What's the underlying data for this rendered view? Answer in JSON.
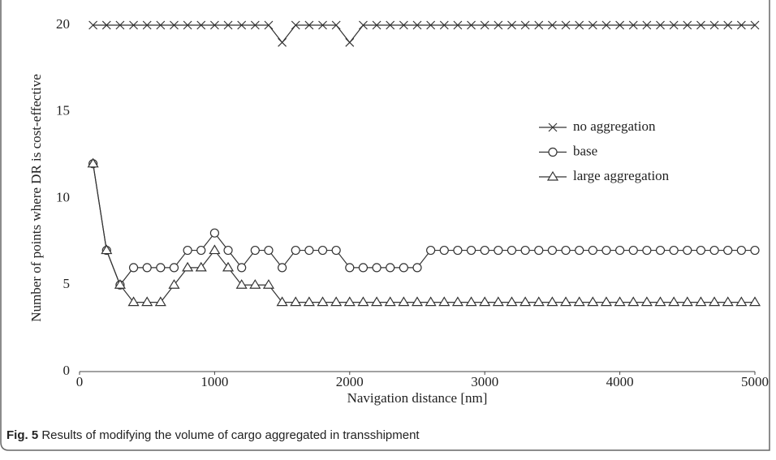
{
  "chart_data": {
    "type": "line",
    "xlabel": "Navigation distance [nm]",
    "ylabel": "Number of points where DR is cost-effective",
    "x": [
      100,
      200,
      300,
      400,
      500,
      600,
      700,
      800,
      900,
      1000,
      1100,
      1200,
      1300,
      1400,
      1500,
      1600,
      1700,
      1800,
      1900,
      2000,
      2100,
      2200,
      2300,
      2400,
      2500,
      2600,
      2700,
      2800,
      2900,
      3000,
      3100,
      3200,
      3300,
      3400,
      3500,
      3600,
      3700,
      3800,
      3900,
      4000,
      4100,
      4200,
      4300,
      4400,
      4500,
      4600,
      4700,
      4800,
      4900,
      5000
    ],
    "series": [
      {
        "name": "no aggregation",
        "color": "#333333",
        "marker": "x",
        "values": [
          20,
          20,
          20,
          20,
          20,
          20,
          20,
          20,
          20,
          20,
          20,
          20,
          20,
          20,
          19,
          20,
          20,
          20,
          20,
          19,
          20,
          20,
          20,
          20,
          20,
          20,
          20,
          20,
          20,
          20,
          20,
          20,
          20,
          20,
          20,
          20,
          20,
          20,
          20,
          20,
          20,
          20,
          20,
          20,
          20,
          20,
          20,
          20,
          20,
          20
        ]
      },
      {
        "name": "base",
        "color": "#333333",
        "marker": "circle",
        "values": [
          12,
          7,
          5,
          6,
          6,
          6,
          6,
          7,
          7,
          8,
          7,
          6,
          7,
          7,
          6,
          7,
          7,
          7,
          7,
          6,
          6,
          6,
          6,
          6,
          6,
          7,
          7,
          7,
          7,
          7,
          7,
          7,
          7,
          7,
          7,
          7,
          7,
          7,
          7,
          7,
          7,
          7,
          7,
          7,
          7,
          7,
          7,
          7,
          7,
          7
        ]
      },
      {
        "name": "large aggregation",
        "color": "#333333",
        "marker": "triangle",
        "values": [
          12,
          7,
          5,
          4,
          4,
          4,
          5,
          6,
          6,
          7,
          6,
          5,
          5,
          5,
          4,
          4,
          4,
          4,
          4,
          4,
          4,
          4,
          4,
          4,
          4,
          4,
          4,
          4,
          4,
          4,
          4,
          4,
          4,
          4,
          4,
          4,
          4,
          4,
          4,
          4,
          4,
          4,
          4,
          4,
          4,
          4,
          4,
          4,
          4,
          4
        ]
      }
    ],
    "xlim": [
      0,
      5000
    ],
    "xticks": [
      0,
      1000,
      2000,
      3000,
      4000,
      5000
    ],
    "ylim": [
      0,
      20
    ],
    "yticks": [
      0,
      5,
      10,
      15,
      20
    ],
    "grid": false,
    "legend": "right"
  },
  "caption": {
    "label": "Fig. 5",
    "text": "Results of modifying the volume of cargo aggregated in transshipment"
  }
}
